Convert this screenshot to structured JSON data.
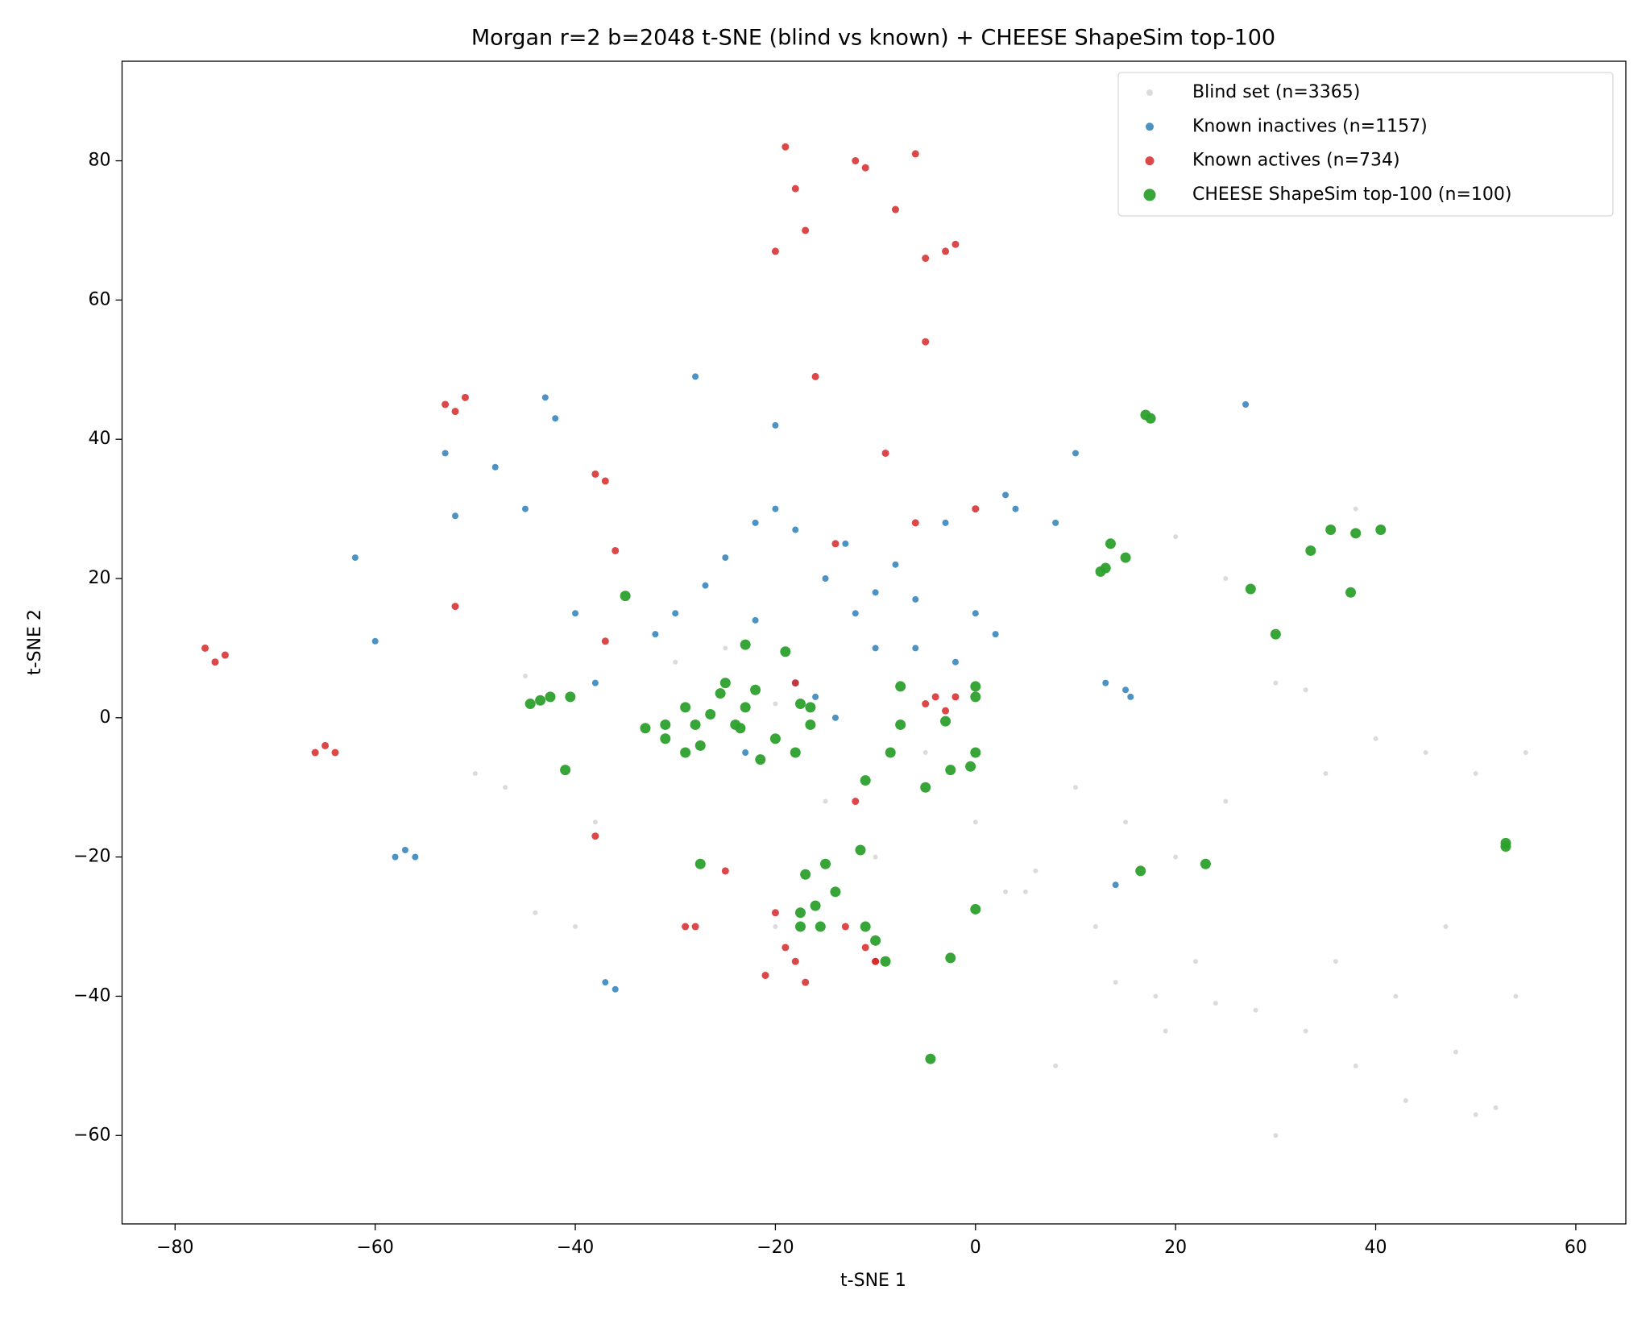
{
  "chart_data": {
    "type": "scatter",
    "title": "Morgan r=2 b=2048 t-SNE (blind vs known) + CHEESE ShapeSim top-100",
    "x_label": "t-SNE 1",
    "y_label": "t-SNE 2",
    "xlim": [
      -85.3,
      65.0
    ],
    "ylim": [
      -72.7,
      94.3
    ],
    "xticks": [
      {
        "value": -80,
        "label": "−80"
      },
      {
        "value": -60,
        "label": "−60"
      },
      {
        "value": -40,
        "label": "−40"
      },
      {
        "value": -20,
        "label": "−20"
      },
      0,
      20,
      40,
      60
    ],
    "yticks": [
      {
        "value": -60,
        "label": "−60"
      },
      {
        "value": -40,
        "label": "−40"
      },
      {
        "value": -20,
        "label": "−20"
      },
      0,
      20,
      40,
      60,
      80
    ],
    "legend": "upper right",
    "series": [
      {
        "name": "Blind set (n=3365)",
        "color": "#bdbdbd",
        "x": [
          10,
          15,
          20,
          25,
          30,
          35,
          40,
          45,
          50,
          55,
          5,
          12,
          18,
          22,
          28,
          33,
          38,
          43,
          48,
          52,
          8,
          14,
          19,
          24,
          30,
          36,
          42,
          47,
          50,
          54,
          -50,
          -47,
          -44,
          -40,
          -38,
          -30,
          -25,
          -20,
          -15,
          -10,
          -5,
          0,
          3,
          6,
          20,
          25,
          33,
          38,
          -45,
          -20
        ],
        "y": [
          -10,
          -15,
          -20,
          -12,
          5,
          -8,
          -3,
          -5,
          -8,
          -5,
          -25,
          -30,
          -40,
          -35,
          -42,
          -45,
          -50,
          -55,
          -48,
          -56,
          -50,
          -38,
          -45,
          -41,
          -60,
          -35,
          -40,
          -30,
          -57,
          -40,
          -8,
          -10,
          -28,
          -30,
          -15,
          8,
          10,
          2,
          -12,
          -20,
          -5,
          -15,
          -25,
          -22,
          26,
          20,
          4,
          30,
          6,
          -30
        ]
      },
      {
        "name": "Known inactives (n=1157)",
        "color": "#1f77b4",
        "x": [
          -62,
          -60,
          -56,
          -52,
          -53,
          -48,
          -45,
          -43,
          -42,
          -36,
          -30,
          -28,
          -25,
          -22,
          -20,
          -18,
          -15,
          -13,
          -12,
          -10,
          -8,
          -6,
          -3,
          0,
          3,
          4,
          8,
          10,
          13,
          15,
          15.5,
          14,
          -38,
          -32,
          -27,
          -22,
          -18,
          -14,
          -10,
          -6,
          -2,
          2,
          -58,
          -57,
          -37,
          -40,
          -23,
          -16,
          27,
          -20
        ],
        "y": [
          23,
          11,
          -20,
          29,
          38,
          36,
          30,
          46,
          43,
          -39,
          15,
          49,
          23,
          28,
          30,
          27,
          20,
          25,
          15,
          18,
          22,
          10,
          28,
          15,
          32,
          30,
          28,
          38,
          5,
          4,
          3,
          -24,
          5,
          12,
          19,
          14,
          5,
          0,
          10,
          17,
          8,
          12,
          -20,
          -19,
          -38,
          15,
          -5,
          3,
          45,
          42
        ]
      },
      {
        "name": "Known actives (n=734)",
        "color": "#d62728",
        "x": [
          -76,
          -77,
          -75,
          -53,
          -52,
          -51,
          -52,
          -65,
          -66,
          -64,
          -38,
          -37,
          -36,
          -37,
          -38,
          -19,
          -18,
          -17,
          -12,
          -11,
          -8,
          -6,
          -5,
          -3,
          -2,
          -20,
          -18,
          -19,
          -21,
          -20,
          -16,
          -13,
          -11,
          -10,
          -5,
          -4,
          -3,
          -2,
          0,
          -14,
          -18,
          -17,
          -12,
          -10,
          -25,
          -28,
          -9,
          -6,
          -29,
          -5
        ],
        "y": [
          8,
          10,
          9,
          45,
          44,
          46,
          16,
          -4,
          -5,
          -5,
          35,
          34,
          24,
          11,
          -17,
          82,
          76,
          70,
          80,
          79,
          73,
          81,
          66,
          67,
          68,
          -28,
          -35,
          -33,
          -37,
          67,
          49,
          -30,
          -33,
          -35,
          2,
          3,
          1,
          3,
          30,
          25,
          5,
          -38,
          -12,
          -35,
          -22,
          -30,
          38,
          28,
          -30,
          54
        ]
      },
      {
        "name": "CHEESE ShapeSim top-100 (n=100)",
        "color": "#2ca02c",
        "x": [
          -44.5,
          -43.5,
          -42.5,
          -40.5,
          -41,
          -35,
          -33,
          -31,
          -31,
          -29,
          -28,
          -29,
          -27.5,
          -26.5,
          -25.5,
          -25,
          -24,
          -23,
          -23.5,
          -23,
          -22,
          -21.5,
          -19,
          -20,
          -18,
          -17.5,
          -16.5,
          -16.5,
          -11,
          -11.5,
          -8.5,
          -7.5,
          -7.5,
          -5,
          -3,
          -2.5,
          -0.5,
          0,
          0,
          0,
          -27.5,
          -17,
          -15,
          -14,
          -16,
          -17.5,
          -17.5,
          -15.5,
          -11,
          -10,
          -9,
          -2.5,
          0,
          -4.5,
          12.5,
          13,
          13.5,
          15,
          17,
          17.5,
          16.5,
          23,
          27.5,
          30,
          33.5,
          35.5,
          38,
          40.5,
          37.5,
          53,
          53
        ],
        "y": [
          2,
          2.5,
          3,
          3,
          -7.5,
          17.5,
          -1.5,
          -1,
          -3,
          1.5,
          -1,
          -5,
          -4,
          0.5,
          3.5,
          5,
          -1,
          1.5,
          -1.5,
          10.5,
          4,
          -6,
          9.5,
          -3,
          -5,
          2,
          1.5,
          -1,
          -9,
          -19,
          -5,
          4.5,
          -1,
          -10,
          -0.5,
          -7.5,
          -7,
          -5,
          3,
          4.5,
          -21,
          -22.5,
          -21,
          -25,
          -27,
          -28,
          -30,
          -30,
          -30,
          -32,
          -35,
          -34.5,
          -27.5,
          -49,
          21,
          21.5,
          25,
          23,
          43.5,
          43,
          -22,
          -21,
          18.5,
          12,
          24,
          27,
          26.5,
          27,
          18,
          -18,
          -18.5
        ]
      }
    ]
  }
}
